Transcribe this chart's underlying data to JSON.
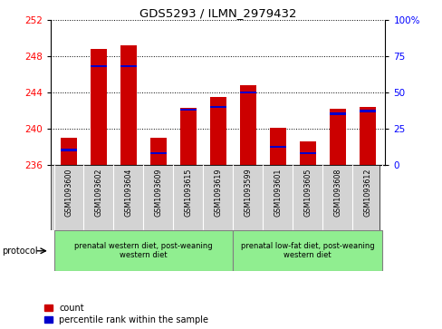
{
  "title": "GDS5293 / ILMN_2979432",
  "samples": [
    "GSM1093600",
    "GSM1093602",
    "GSM1093604",
    "GSM1093609",
    "GSM1093615",
    "GSM1093619",
    "GSM1093599",
    "GSM1093601",
    "GSM1093605",
    "GSM1093608",
    "GSM1093612"
  ],
  "count_values": [
    239.0,
    248.8,
    249.2,
    239.0,
    242.3,
    243.5,
    244.8,
    240.1,
    238.6,
    242.2,
    242.4
  ],
  "percentile_values": [
    10,
    68,
    68,
    8,
    38,
    40,
    50,
    12,
    8,
    35,
    37
  ],
  "y_min": 236,
  "y_max": 252,
  "y_ticks": [
    236,
    240,
    244,
    248,
    252
  ],
  "right_y_ticks": [
    0,
    25,
    50,
    75,
    100
  ],
  "right_y_labels": [
    "0",
    "25",
    "50",
    "75",
    "100%"
  ],
  "bar_color": "#cc0000",
  "percentile_color": "#0000cc",
  "group1_label": "prenatal western diet, post-weaning\nwestern diet",
  "group2_label": "prenatal low-fat diet, post-weaning\nwestern diet",
  "group1_count": 6,
  "group2_count": 5,
  "group1_color": "#90ee90",
  "group2_color": "#90ee90",
  "protocol_label": "protocol",
  "legend_count_label": "count",
  "legend_percentile_label": "percentile rank within the sample",
  "bar_width": 0.55,
  "tick_area_color": "#d3d3d3"
}
